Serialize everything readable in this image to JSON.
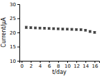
{
  "chart_data": {
    "type": "scatter",
    "x": [
      1,
      2,
      3,
      4,
      5,
      6,
      7,
      8,
      9,
      10,
      11,
      12,
      13,
      14,
      15,
      16
    ],
    "values": [
      21.8,
      21.7,
      21.6,
      21.55,
      21.5,
      21.4,
      21.35,
      21.3,
      21.2,
      21.15,
      21.1,
      21.05,
      21.0,
      20.8,
      20.35,
      20.05
    ],
    "errors": [
      0.38,
      0.32,
      0.3,
      0.3,
      0.3,
      0.3,
      0.3,
      0.3,
      0.3,
      0.3,
      0.3,
      0.3,
      0.3,
      0.3,
      0.32,
      0.32
    ],
    "xlabel": "t/day",
    "ylabel": "Current/μA",
    "xlim": [
      -0.5,
      17
    ],
    "ylim": [
      10,
      30
    ],
    "xticks": [
      0,
      2,
      4,
      6,
      8,
      10,
      12,
      14,
      16
    ],
    "yticks": [
      10,
      15,
      20,
      25,
      30
    ],
    "color": "#444444",
    "marker": "square"
  }
}
